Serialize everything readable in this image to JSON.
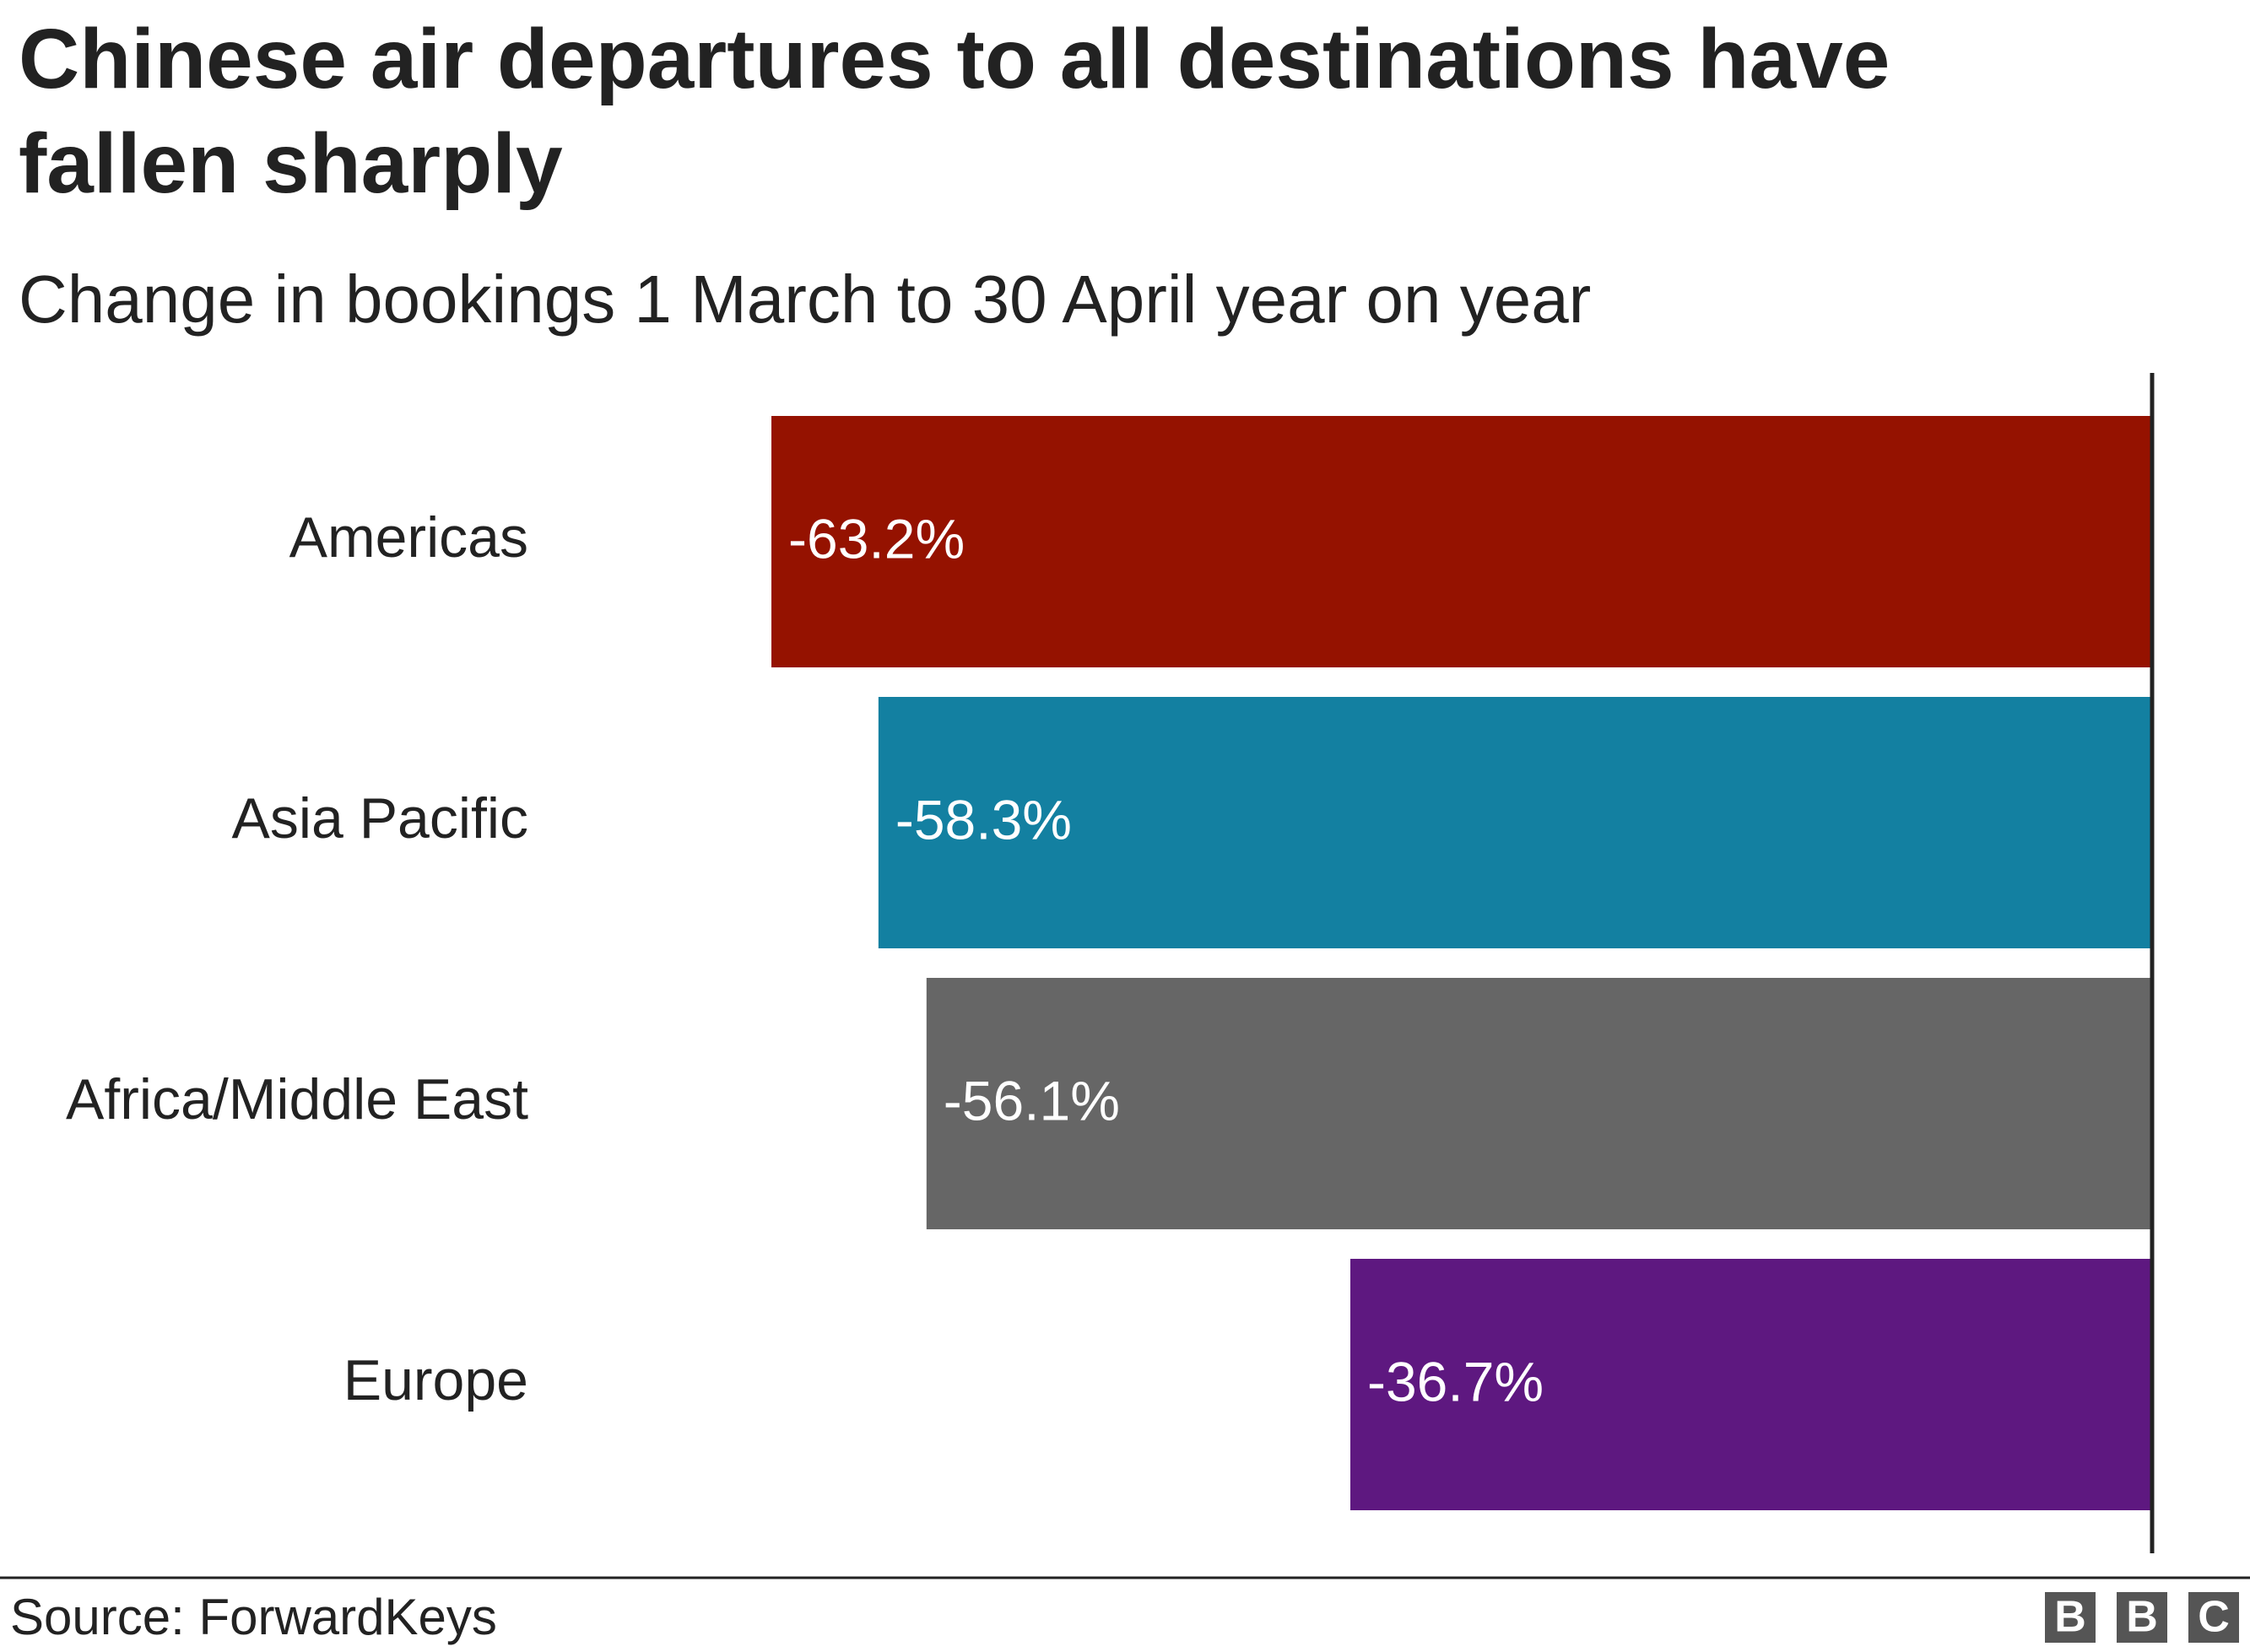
{
  "chart_data": {
    "type": "hbar",
    "title": "Chinese air departures to all destinations have fallen sharply",
    "subtitle": "Change in bookings 1 March to 30 April year on year",
    "categories": [
      "Americas",
      "Asia Pacific",
      "Africa/Middle East",
      "Europe"
    ],
    "values": [
      -63.2,
      -58.3,
      -56.1,
      -36.7
    ],
    "value_labels": [
      "-63.2%",
      "-58.3%",
      "-56.1%",
      "-36.7%"
    ],
    "colors": [
      "#951200",
      "#1380a1",
      "#666666",
      "#5e1880"
    ],
    "xlim": [
      -70,
      0
    ],
    "source": "Source: ForwardKeys",
    "logo": [
      "B",
      "B",
      "C"
    ]
  }
}
